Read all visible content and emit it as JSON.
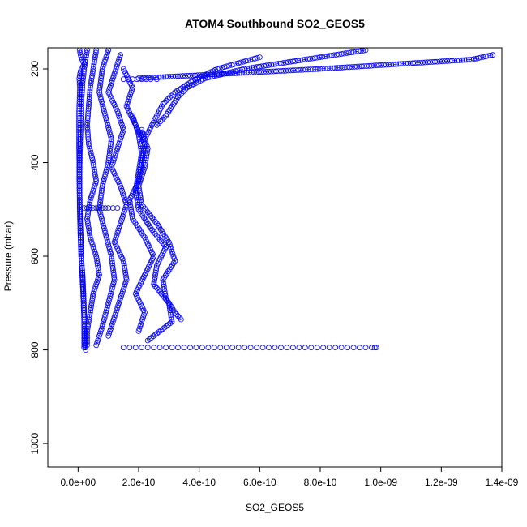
{
  "chart_data": {
    "type": "scatter",
    "title": "ATOM4 Southbound SO2_GEOS5",
    "xlabel": "SO2_GEOS5",
    "ylabel": "Pressure (mbar)",
    "xlim": [
      -1e-10,
      1.4e-09
    ],
    "ylim": [
      1050,
      155
    ],
    "y_reversed": true,
    "x_ticks": [
      0,
      2e-10,
      4e-10,
      6e-10,
      8e-10,
      1e-09,
      1.2e-09,
      1.4e-09
    ],
    "x_tick_labels": [
      "0.0e+00",
      "2.0e-10",
      "4.0e-10",
      "6.0e-10",
      "8.0e-10",
      "1.0e-09",
      "1.2e-09",
      "1.4e-09"
    ],
    "y_ticks": [
      200,
      400,
      600,
      800,
      1000
    ],
    "y_tick_labels": [
      "200",
      "400",
      "600",
      "800",
      "1000"
    ],
    "marker": "open-circle",
    "series_color": "#0000ff",
    "grid": false,
    "series": [
      {
        "pressure": [
          160,
          175,
          190,
          205,
          220,
          240,
          260,
          280,
          300,
          330,
          360,
          400,
          440,
          480,
          520,
          560,
          600,
          640,
          680,
          720,
          760,
          795
        ],
        "values": [
          5e-12,
          1e-11,
          2e-11,
          8e-12,
          4e-12,
          6e-12,
          5e-12,
          4e-12,
          3e-12,
          3e-12,
          3e-12,
          4e-12,
          4e-12,
          5e-12,
          6e-12,
          8e-12,
          1e-11,
          1.5e-11,
          1.8e-11,
          2e-11,
          2e-11,
          2e-11
        ]
      },
      {
        "pressure": [
          160,
          180,
          200,
          230,
          260,
          300,
          340,
          380,
          420,
          460,
          500,
          540,
          580,
          620,
          660,
          700,
          740,
          780,
          800
        ],
        "values": [
          3e-11,
          2.5e-11,
          2e-11,
          1.5e-11,
          1.2e-11,
          1e-11,
          8e-12,
          6e-12,
          5e-12,
          5e-12,
          6e-12,
          8e-12,
          1e-11,
          1.2e-11,
          1.5e-11,
          1.8e-11,
          2e-11,
          2.2e-11,
          2.5e-11
        ]
      },
      {
        "pressure": [
          160,
          200,
          240,
          280,
          320,
          360,
          400,
          440,
          480,
          520,
          560,
          600,
          640,
          680,
          720,
          760,
          790
        ],
        "values": [
          6e-11,
          5e-11,
          4e-11,
          3.5e-11,
          3e-11,
          3.5e-11,
          5e-11,
          6e-11,
          4e-11,
          3e-11,
          4e-11,
          6e-11,
          7e-11,
          5e-11,
          4e-11,
          3e-11,
          3e-11
        ]
      },
      {
        "pressure": [
          160,
          200,
          250,
          300,
          350,
          400,
          450,
          500,
          550,
          600,
          650,
          700,
          750,
          790
        ],
        "values": [
          1e-10,
          8e-11,
          7e-11,
          9e-11,
          1.1e-10,
          1e-10,
          8e-11,
          7e-11,
          9e-11,
          1.1e-10,
          1.2e-10,
          1e-10,
          8e-11,
          6e-11
        ]
      },
      {
        "pressure": [
          170,
          210,
          250,
          290,
          330,
          370,
          410,
          450,
          490,
          530,
          570,
          610,
          650,
          690,
          730,
          770
        ],
        "values": [
          1.4e-10,
          1.2e-10,
          1e-10,
          1.3e-10,
          1.5e-10,
          1.3e-10,
          1.1e-10,
          1.4e-10,
          1.6e-10,
          1.4e-10,
          1.2e-10,
          1.5e-10,
          1.6e-10,
          1.4e-10,
          1.2e-10,
          1e-10
        ]
      },
      {
        "pressure": [
          200,
          240,
          280,
          320,
          360,
          400,
          440,
          480,
          520,
          560,
          600,
          640,
          680,
          720,
          760
        ],
        "values": [
          1.5e-10,
          1.8e-10,
          1.6e-10,
          1.9e-10,
          2.2e-10,
          2.1e-10,
          2e-10,
          1.7e-10,
          1.8e-10,
          2.2e-10,
          2.5e-10,
          2.2e-10,
          1.9e-10,
          2.2e-10,
          2e-10
        ]
      },
      {
        "pressure": [
          300,
          340,
          380,
          420,
          460,
          500,
          540,
          580,
          620,
          660,
          700,
          740,
          780
        ],
        "values": [
          1.8e-10,
          2e-10,
          2.1e-10,
          2e-10,
          1.9e-10,
          2e-10,
          2.4e-10,
          2.9e-10,
          2.6e-10,
          2.5e-10,
          3e-10,
          3.1e-10,
          2.3e-10
        ]
      },
      {
        "pressure": [
          330,
          370,
          410,
          450,
          490,
          530,
          570,
          610,
          650,
          690,
          720,
          735
        ],
        "values": [
          2.1e-10,
          2.3e-10,
          2.2e-10,
          2e-10,
          2.1e-10,
          2.6e-10,
          3e-10,
          3.2e-10,
          2.8e-10,
          2.9e-10,
          3.2e-10,
          3.4e-10
        ]
      },
      {
        "pressure": [
          170,
          180,
          190,
          200,
          210,
          220
        ],
        "values": [
          1.37e-09,
          1.3e-09,
          1.05e-09,
          8e-10,
          5e-10,
          2e-10
        ]
      },
      {
        "pressure": [
          160,
          180,
          200,
          220,
          240,
          260,
          280,
          300,
          320
        ],
        "values": [
          9.5e-10,
          7.5e-10,
          5.5e-10,
          4.2e-10,
          3.6e-10,
          3.3e-10,
          3.1e-10,
          2.9e-10,
          2.6e-10
        ]
      },
      {
        "pressure": [
          175,
          200,
          225,
          250,
          275,
          300,
          325,
          350
        ],
        "values": [
          6e-10,
          4.6e-10,
          3.8e-10,
          3.2e-10,
          2.8e-10,
          2.6e-10,
          2.4e-10,
          2.2e-10
        ]
      },
      {
        "pressure": [
          795,
          795,
          795,
          795,
          795,
          795,
          795,
          795,
          795,
          795,
          795,
          795,
          795,
          795,
          795,
          795,
          795,
          795,
          795,
          795,
          795,
          795,
          795,
          795,
          795,
          795,
          795,
          795,
          795,
          795,
          795,
          795,
          795,
          795,
          795,
          795,
          795,
          795,
          795,
          795,
          795,
          795,
          795,
          795
        ],
        "values": [
          1.5e-10,
          1.7e-10,
          1.9e-10,
          2.1e-10,
          2.3e-10,
          2.5e-10,
          2.7e-10,
          2.9e-10,
          3.1e-10,
          3.3e-10,
          3.5e-10,
          3.7e-10,
          3.9e-10,
          4.1e-10,
          4.3e-10,
          4.5e-10,
          4.7e-10,
          4.9e-10,
          5.1e-10,
          5.3e-10,
          5.5e-10,
          5.7e-10,
          5.9e-10,
          6.1e-10,
          6.3e-10,
          6.5e-10,
          6.7e-10,
          6.9e-10,
          7.1e-10,
          7.3e-10,
          7.5e-10,
          7.7e-10,
          7.9e-10,
          8.1e-10,
          8.3e-10,
          8.5e-10,
          8.7e-10,
          8.9e-10,
          9.1e-10,
          9.3e-10,
          9.5e-10,
          9.7e-10,
          9.85e-10,
          9.8e-10
        ]
      },
      {
        "pressure": [
          497,
          497,
          497,
          497,
          497,
          497,
          497,
          497,
          497,
          497,
          497
        ],
        "values": [
          2e-11,
          3e-11,
          4e-11,
          5e-11,
          6e-11,
          7e-11,
          8e-11,
          9e-11,
          1e-10,
          1.15e-10,
          1.3e-10
        ]
      },
      {
        "pressure": [
          222,
          222,
          222,
          222,
          222,
          222,
          222,
          222
        ],
        "values": [
          1.5e-10,
          1.65e-10,
          1.8e-10,
          1.95e-10,
          2.1e-10,
          2.25e-10,
          2.4e-10,
          2.6e-10
        ]
      }
    ]
  }
}
